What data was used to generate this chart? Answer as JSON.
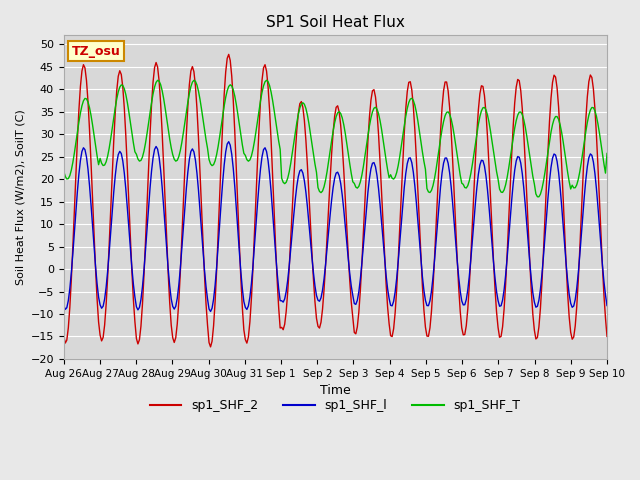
{
  "title": "SP1 Soil Heat Flux",
  "xlabel": "Time",
  "ylabel": "Soil Heat Flux (W/m2), SoilT (C)",
  "ylim": [
    -20,
    52
  ],
  "yticks": [
    -20,
    -15,
    -10,
    -5,
    0,
    5,
    10,
    15,
    20,
    25,
    30,
    35,
    40,
    45,
    50
  ],
  "bg_color": "#e8e8e8",
  "plot_bg_color": "#d8d8d8",
  "grid_color": "#ffffff",
  "legend_entries": [
    "sp1_SHF_2",
    "sp1_SHF_l",
    "sp1_SHF_T"
  ],
  "line_colors": [
    "#cc0000",
    "#0000cc",
    "#00bb00"
  ],
  "annotation_text": "TZ_osu",
  "annotation_bg": "#ffffcc",
  "annotation_border": "#cc8800",
  "annotation_text_color": "#cc0000",
  "day_labels": [
    "Aug 26",
    "Aug 27",
    "Aug 28",
    "Aug 29",
    "Aug 30",
    "Aug 31",
    "Sep 1",
    "Sep 2",
    "Sep 3",
    "Sep 4",
    "Sep 5",
    "Sep 6",
    "Sep 7",
    "Sep 8",
    "Sep 9",
    "Sep 10"
  ],
  "num_days": 15,
  "shf2_base": 14.5,
  "shf2_amp": 31,
  "shf2_phase": 0.55,
  "shf2_day_mod": [
    1.0,
    0.97,
    1.01,
    0.99,
    1.05,
    1.0,
    0.82,
    0.8,
    0.88,
    0.92,
    0.92,
    0.9,
    0.93,
    0.95,
    0.95
  ],
  "shf1_base": 9.0,
  "shf1_amp": 18,
  "shf1_phase": 0.55,
  "shf1_day_mod": [
    1.0,
    0.97,
    1.01,
    0.99,
    1.05,
    1.0,
    0.82,
    0.8,
    0.88,
    0.92,
    0.92,
    0.9,
    0.93,
    0.95,
    0.95
  ],
  "shft_base": 33,
  "shft_amp": 9,
  "shft_phase": 0.6,
  "shft_day_offsets": [
    -4,
    -1,
    0,
    0,
    -1,
    0,
    -5,
    -7,
    -6,
    -4,
    -7,
    -6,
    -7,
    -8,
    -6
  ]
}
